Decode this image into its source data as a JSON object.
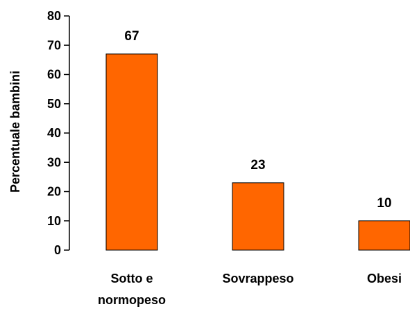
{
  "chart_data": {
    "type": "bar",
    "categories": [
      "Sotto e normopeso",
      "Sovrappeso",
      "Obesi"
    ],
    "category_lines": [
      [
        "Sotto e",
        "normopeso"
      ],
      [
        "Sovrappeso"
      ],
      [
        "Obesi"
      ]
    ],
    "values": [
      67,
      23,
      10
    ],
    "data_labels": [
      "67",
      "23",
      "10"
    ],
    "title": "",
    "xlabel": "",
    "ylabel": "Percentuale bambini",
    "ylim": [
      0,
      80
    ],
    "yticks": [
      0,
      10,
      20,
      30,
      40,
      50,
      60,
      70,
      80
    ],
    "grid": false,
    "legend": "none",
    "bar_color": "#FF6600",
    "bar_edge_color": "#000000"
  }
}
